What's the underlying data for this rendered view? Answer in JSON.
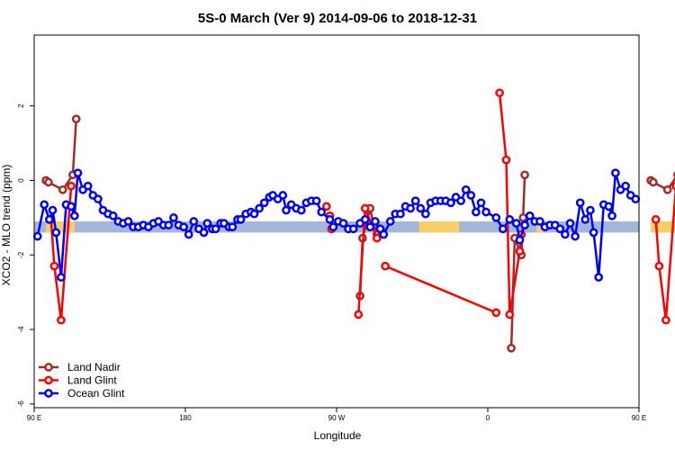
{
  "chart_data": {
    "type": "line",
    "title": "5S-0 March (Ver 9)   2014-09-06 to 2018-12-31",
    "xlabel": "Longitude",
    "ylabel": "XCO2 - MLO trend (ppm)",
    "xlim": [
      90,
      450
    ],
    "ylim": [
      -6.1,
      3.9
    ],
    "x_ticks": [
      {
        "value": 90,
        "label": "90 E"
      },
      {
        "value": 180,
        "label": "180"
      },
      {
        "value": 270,
        "label": "90 W"
      },
      {
        "value": 360,
        "label": "0"
      },
      {
        "value": 450,
        "label": "90 E"
      }
    ],
    "y_ticks": [
      {
        "value": -6,
        "label": "-6"
      },
      {
        "value": -4,
        "label": "-4"
      },
      {
        "value": -2,
        "label": "-2"
      },
      {
        "value": 0,
        "label": "0"
      },
      {
        "value": 2,
        "label": "2"
      }
    ],
    "grid": false,
    "legend_position": "bottom-left",
    "band": {
      "y_min": -1.4,
      "y_max": -1.1,
      "color": "#a3b8d8",
      "land_color": "#f5cf6a"
    },
    "land_segments": [
      [
        97,
        114
      ],
      [
        319,
        343
      ],
      [
        389,
        393
      ],
      [
        457,
        474
      ]
    ],
    "series": [
      {
        "name": "Land Nadir",
        "color": "#a52a2a",
        "points": [
          [
            97,
            0.0
          ],
          [
            98.5,
            -0.05
          ],
          [
            107,
            -0.25
          ],
          [
            113,
            0.15
          ],
          [
            115,
            1.65
          ],
          [
            284,
            -3.1
          ],
          [
            285.5,
            -1.55
          ],
          [
            290,
            -0.75
          ],
          [
            292,
            -1.2
          ],
          [
            294,
            -1.45
          ],
          [
            297,
            -1.4
          ],
          [
            374,
            -4.5
          ],
          [
            376,
            -1.55
          ],
          [
            380,
            -2.0
          ],
          [
            381,
            -1.0
          ],
          [
            382,
            0.15
          ],
          [
            457,
            0.0
          ],
          [
            458.5,
            -0.05
          ],
          [
            467,
            -0.25
          ],
          [
            473,
            0.15
          ],
          [
            475,
            1.65
          ]
        ],
        "segment_breaks": [
          5,
          11,
          16
        ]
      },
      {
        "name": "Land Glint",
        "color": "#ff0000",
        "points": [
          [
            100,
            -1.05
          ],
          [
            102,
            -2.3
          ],
          [
            106,
            -3.75
          ],
          [
            112,
            -0.15
          ],
          [
            264,
            -0.7
          ],
          [
            267,
            -1.3
          ],
          [
            266,
            -0.95
          ],
          [
            283,
            -3.6
          ],
          [
            287,
            -0.75
          ],
          [
            294,
            -1.55
          ],
          [
            296,
            -1.3
          ],
          [
            299,
            -2.3
          ],
          [
            365,
            -3.55
          ],
          [
            367,
            2.35
          ],
          [
            371,
            0.55
          ],
          [
            373,
            -3.6
          ],
          [
            379,
            -1.9
          ],
          [
            380,
            -1.45
          ],
          [
            460,
            -1.05
          ],
          [
            462,
            -2.3
          ],
          [
            466,
            -3.75
          ],
          [
            472,
            -0.15
          ]
        ],
        "segment_breaks": [
          4,
          5,
          6,
          7,
          11,
          13,
          18
        ]
      },
      {
        "name": "Ocean Glint",
        "color": "#0000ff",
        "points": [
          [
            92,
            -1.5
          ],
          [
            96,
            -0.65
          ],
          [
            99,
            -1.05
          ],
          [
            101,
            -0.8
          ],
          [
            103,
            -1.4
          ],
          [
            106,
            -2.6
          ],
          [
            109,
            -0.65
          ],
          [
            112,
            -0.7
          ],
          [
            114,
            -0.95
          ],
          [
            116,
            0.2
          ],
          [
            119,
            -0.25
          ],
          [
            122,
            -0.15
          ],
          [
            125,
            -0.4
          ],
          [
            128,
            -0.5
          ],
          [
            131,
            -0.8
          ],
          [
            134,
            -0.9
          ],
          [
            137,
            -0.95
          ],
          [
            140,
            -1.1
          ],
          [
            143,
            -1.15
          ],
          [
            146,
            -1.1
          ],
          [
            149,
            -1.25
          ],
          [
            152,
            -1.25
          ],
          [
            155,
            -1.2
          ],
          [
            158,
            -1.25
          ],
          [
            161,
            -1.15
          ],
          [
            164,
            -1.1
          ],
          [
            167,
            -1.2
          ],
          [
            170,
            -1.2
          ],
          [
            173,
            -1.0
          ],
          [
            176,
            -1.2
          ],
          [
            179,
            -1.25
          ],
          [
            182,
            -1.45
          ],
          [
            185,
            -1.1
          ],
          [
            188,
            -1.3
          ],
          [
            191,
            -1.4
          ],
          [
            193,
            -1.15
          ],
          [
            196,
            -1.3
          ],
          [
            198,
            -1.3
          ],
          [
            201,
            -1.15
          ],
          [
            203,
            -1.15
          ],
          [
            206,
            -1.25
          ],
          [
            208,
            -1.25
          ],
          [
            211,
            -1.05
          ],
          [
            213,
            -1.05
          ],
          [
            216,
            -0.9
          ],
          [
            219,
            -0.85
          ],
          [
            221,
            -0.9
          ],
          [
            224,
            -0.75
          ],
          [
            227,
            -0.6
          ],
          [
            230,
            -0.45
          ],
          [
            232,
            -0.4
          ],
          [
            235,
            -0.5
          ],
          [
            238,
            -0.4
          ],
          [
            240,
            -0.8
          ],
          [
            243,
            -0.65
          ],
          [
            246,
            -0.75
          ],
          [
            249,
            -0.8
          ],
          [
            252,
            -0.6
          ],
          [
            255,
            -0.55
          ],
          [
            258,
            -0.55
          ],
          [
            261,
            -0.85
          ],
          [
            266,
            -1.05
          ],
          [
            268,
            -1.25
          ],
          [
            271,
            -1.1
          ],
          [
            274,
            -1.15
          ],
          [
            277,
            -1.3
          ],
          [
            280,
            -1.3
          ],
          [
            284,
            -1.15
          ],
          [
            287,
            -1.05
          ],
          [
            290,
            -1.25
          ],
          [
            293,
            -1.1
          ],
          [
            296,
            -1.3
          ],
          [
            298,
            -1.45
          ],
          [
            302,
            -1.1
          ],
          [
            305,
            -0.9
          ],
          [
            308,
            -0.9
          ],
          [
            311,
            -0.7
          ],
          [
            314,
            -0.75
          ],
          [
            317,
            -0.55
          ],
          [
            320,
            -0.75
          ],
          [
            323,
            -0.9
          ],
          [
            326,
            -0.6
          ],
          [
            329,
            -0.55
          ],
          [
            332,
            -0.55
          ],
          [
            335,
            -0.55
          ],
          [
            338,
            -0.6
          ],
          [
            341,
            -0.45
          ],
          [
            344,
            -0.55
          ],
          [
            347,
            -0.25
          ],
          [
            350,
            -0.4
          ],
          [
            353,
            -0.85
          ],
          [
            356,
            -0.6
          ],
          [
            359,
            -0.85
          ],
          [
            365,
            -1.0
          ],
          [
            369,
            -1.3
          ],
          [
            373,
            -1.05
          ],
          [
            377,
            -1.15
          ],
          [
            379,
            -1.6
          ],
          [
            382,
            -1.2
          ],
          [
            385,
            -0.95
          ],
          [
            388,
            -1.1
          ],
          [
            391,
            -1.1
          ],
          [
            394,
            -1.25
          ],
          [
            397,
            -1.2
          ],
          [
            400,
            -1.2
          ],
          [
            403,
            -1.3
          ],
          [
            406,
            -1.45
          ],
          [
            409,
            -1.15
          ],
          [
            412,
            -1.5
          ],
          [
            415,
            -0.6
          ],
          [
            418,
            -1.05
          ],
          [
            421,
            -0.8
          ],
          [
            423,
            -1.4
          ],
          [
            426,
            -2.6
          ],
          [
            429,
            -0.65
          ],
          [
            432,
            -0.7
          ],
          [
            434,
            -0.95
          ],
          [
            436,
            0.2
          ],
          [
            439,
            -0.25
          ],
          [
            442,
            -0.15
          ],
          [
            445,
            -0.4
          ],
          [
            448,
            -0.5
          ]
        ],
        "segment_breaks": []
      }
    ]
  },
  "legend": {
    "items": [
      {
        "label": "Land Nadir",
        "color": "#a52a2a"
      },
      {
        "label": "Land Glint",
        "color": "#ff0000"
      },
      {
        "label": "Ocean Glint",
        "color": "#0000ff"
      }
    ]
  }
}
